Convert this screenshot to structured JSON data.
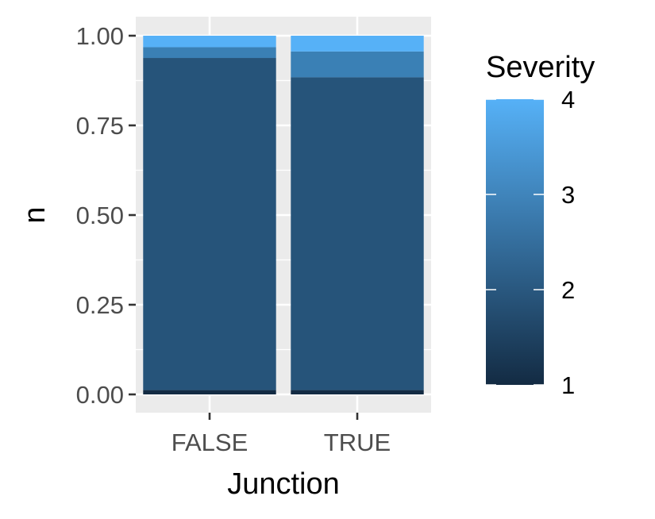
{
  "chart_data": {
    "type": "bar",
    "stacked": true,
    "xlabel": "Junction",
    "ylabel": "n",
    "categories": [
      "FALSE",
      "TRUE"
    ],
    "ylim": [
      0,
      1
    ],
    "yticks": [
      "0.00",
      "0.25",
      "0.50",
      "0.75",
      "1.00"
    ],
    "ytick_values": [
      0,
      0.25,
      0.5,
      0.75,
      1.0
    ],
    "series": [
      {
        "severity": 1,
        "color": "#132b43",
        "values": [
          0.012,
          0.012
        ]
      },
      {
        "severity": 2,
        "color": "#26547a",
        "values": [
          0.926,
          0.872
        ]
      },
      {
        "severity": 3,
        "color": "#3a80b5",
        "values": [
          0.03,
          0.072
        ]
      },
      {
        "severity": 4,
        "color": "#56b1f7",
        "values": [
          0.032,
          0.044
        ]
      }
    ],
    "legend": {
      "title": "Severity",
      "position": "right",
      "type": "colorbar",
      "labels": [
        "4",
        "3",
        "2",
        "1"
      ],
      "label_values": [
        4,
        3,
        2,
        1
      ],
      "range": [
        1,
        4
      ],
      "low_color": "#132b43",
      "high_color": "#56b1f7"
    },
    "grid": true,
    "panel_background": "#ebebeb",
    "grid_color": "#ffffff"
  }
}
